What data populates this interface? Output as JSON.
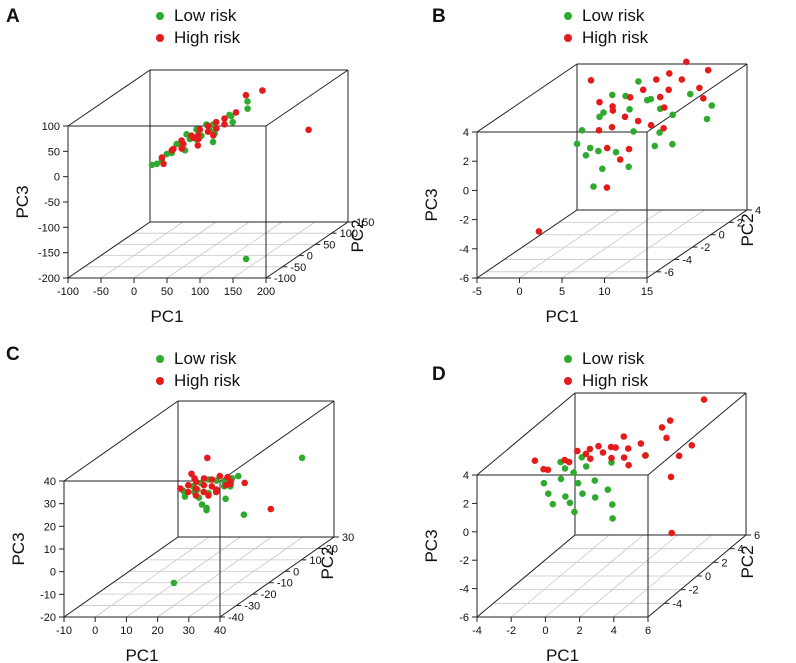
{
  "figure": {
    "colors": {
      "low": "#2eab2e",
      "high": "#e51a1a",
      "axis": "#222222",
      "grid": "#c8c8c8"
    },
    "legend_labels": [
      "Low risk",
      "High risk"
    ]
  },
  "chart_data": [
    {
      "panel": "A",
      "type": "scatter3d",
      "legend": [
        "Low risk",
        "High risk"
      ],
      "xlabel": "PC1",
      "ylabel": "PC2",
      "zlabel": "PC3",
      "xlim": [
        -100,
        200
      ],
      "ylim": [
        -100,
        150
      ],
      "zlim": [
        -200,
        100
      ],
      "xticks": [
        -100,
        -50,
        0,
        50,
        100,
        150,
        200
      ],
      "yticks": [
        -100,
        -50,
        0,
        50,
        100,
        150
      ],
      "zticks": [
        -200,
        -150,
        -100,
        -50,
        0,
        50,
        100
      ],
      "series": [
        {
          "name": "Low risk",
          "points": [
            [
              -5,
              -20,
              -10
            ],
            [
              5,
              -10,
              5
            ],
            [
              15,
              0,
              20
            ],
            [
              25,
              10,
              35
            ],
            [
              35,
              20,
              40
            ],
            [
              45,
              15,
              30
            ],
            [
              55,
              30,
              45
            ],
            [
              30,
              -5,
              10
            ],
            [
              20,
              5,
              15
            ],
            [
              0,
              -15,
              -5
            ],
            [
              40,
              10,
              25
            ],
            [
              60,
              25,
              30
            ],
            [
              75,
              40,
              60
            ],
            [
              85,
              30,
              50
            ],
            [
              100,
              45,
              70
            ],
            [
              95,
              55,
              80
            ],
            [
              50,
              20,
              50
            ],
            [
              65,
              10,
              20
            ],
            [
              80,
              35,
              60
            ],
            [
              10,
              -5,
              5
            ],
            [
              150,
              -60,
              -180
            ],
            [
              -10,
              -25,
              -10
            ],
            [
              35,
              0,
              30
            ],
            [
              58,
              15,
              40
            ]
          ]
        },
        {
          "name": "High risk",
          "points": [
            [
              0,
              -15,
              0
            ],
            [
              10,
              -5,
              10
            ],
            [
              20,
              5,
              25
            ],
            [
              30,
              15,
              30
            ],
            [
              40,
              20,
              40
            ],
            [
              50,
              25,
              45
            ],
            [
              60,
              30,
              50
            ],
            [
              70,
              35,
              55
            ],
            [
              45,
              5,
              35
            ],
            [
              55,
              15,
              38
            ],
            [
              25,
              0,
              20
            ],
            [
              35,
              10,
              28
            ],
            [
              65,
              20,
              42
            ],
            [
              75,
              25,
              48
            ],
            [
              85,
              40,
              65
            ],
            [
              90,
              60,
              90
            ],
            [
              110,
              70,
              95
            ],
            [
              15,
              -10,
              15
            ],
            [
              5,
              -20,
              -10
            ],
            [
              42,
              12,
              25
            ],
            [
              200,
              30,
              35
            ],
            [
              52,
              -10,
              22
            ],
            [
              68,
              5,
              35
            ],
            [
              30,
              -15,
              18
            ]
          ]
        }
      ]
    },
    {
      "panel": "B",
      "type": "scatter3d",
      "legend": [
        "Low risk",
        "High risk"
      ],
      "xlabel": "PC1",
      "ylabel": "PC2",
      "zlabel": "PC3",
      "xlim": [
        -5,
        15
      ],
      "ylim": [
        -7,
        4
      ],
      "zlim": [
        -6,
        4
      ],
      "xticks": [
        -5,
        0,
        5,
        10,
        15
      ],
      "yticks": [
        -6,
        -4,
        -2,
        0,
        2,
        4
      ],
      "zticks": [
        -6,
        -4,
        -2,
        0,
        2,
        4
      ],
      "series": [
        {
          "name": "Low risk",
          "points": [
            [
              2,
              -2,
              2
            ],
            [
              3,
              -1,
              2.5
            ],
            [
              4,
              -1.5,
              3
            ],
            [
              5,
              0,
              3.5
            ],
            [
              6,
              -0.5,
              2.8
            ],
            [
              7,
              0.5,
              3
            ],
            [
              8,
              1,
              2.2
            ],
            [
              3.5,
              -2.5,
              1
            ],
            [
              5,
              -3,
              1
            ],
            [
              6,
              -2,
              0.5
            ],
            [
              7,
              -1,
              1.5
            ],
            [
              9,
              0,
              1
            ],
            [
              10,
              0.5,
              2
            ],
            [
              11,
              1.5,
              3
            ],
            [
              13,
              2,
              2
            ],
            [
              13.5,
              1,
              1.5
            ],
            [
              4.5,
              -1,
              4
            ],
            [
              6.5,
              0,
              4.5
            ],
            [
              8.5,
              -0.5,
              3.5
            ],
            [
              5.5,
              -4,
              -1
            ],
            [
              6,
              -3.5,
              0
            ],
            [
              2.5,
              -3,
              1.5
            ],
            [
              3,
              -2.5,
              0.5
            ],
            [
              7.5,
              -2,
              -0.5
            ],
            [
              9.5,
              -1,
              0.5
            ],
            [
              10.5,
              0,
              0.2
            ]
          ]
        },
        {
          "name": "High risk",
          "points": [
            [
              3,
              -1,
              3.5
            ],
            [
              4,
              -0.5,
              3
            ],
            [
              5,
              0.5,
              3.2
            ],
            [
              6,
              1,
              3.5
            ],
            [
              7,
              1.5,
              4
            ],
            [
              8,
              2,
              4.2
            ],
            [
              9,
              1,
              3.5
            ],
            [
              10,
              1.5,
              4
            ],
            [
              11,
              2.5,
              3
            ],
            [
              12,
              2,
              2.5
            ],
            [
              4,
              -2,
              2
            ],
            [
              5,
              -1.5,
              2
            ],
            [
              6,
              -1,
              2.5
            ],
            [
              7,
              -0.5,
              2
            ],
            [
              8,
              0,
              1.5
            ],
            [
              9,
              0.5,
              2.5
            ],
            [
              10,
              -0.5,
              1.5
            ],
            [
              5.5,
              -2.5,
              1
            ],
            [
              6.5,
              -2,
              0
            ],
            [
              7,
              -1.5,
              0.5
            ],
            [
              6,
              -3,
              -1.5
            ],
            [
              -2,
              -3,
              -4.5
            ],
            [
              2,
              -1,
              5
            ],
            [
              10,
              2,
              5
            ],
            [
              3.5,
              0,
              2.5
            ],
            [
              8,
              1,
              3
            ],
            [
              11.5,
              3,
              4
            ]
          ]
        }
      ]
    },
    {
      "panel": "C",
      "type": "scatter3d",
      "legend": [
        "Low risk",
        "High risk"
      ],
      "xlabel": "PC1",
      "ylabel": "PC2",
      "zlabel": "PC3",
      "xlim": [
        -10,
        40
      ],
      "ylim": [
        -40,
        30
      ],
      "zlim": [
        -20,
        40
      ],
      "xticks": [
        -10,
        0,
        10,
        20,
        30,
        40
      ],
      "yticks": [
        -40,
        -30,
        -20,
        -10,
        0,
        10,
        20,
        30
      ],
      "zticks": [
        -20,
        -10,
        0,
        10,
        20,
        30,
        40
      ],
      "series": [
        {
          "name": "Low risk",
          "points": [
            [
              10,
              -5,
              18
            ],
            [
              12,
              -3,
              19
            ],
            [
              14,
              -2,
              20
            ],
            [
              16,
              -1,
              21
            ],
            [
              18,
              0,
              20
            ],
            [
              20,
              1,
              19
            ],
            [
              22,
              2,
              20
            ],
            [
              11,
              -6,
              16
            ],
            [
              13,
              -4,
              17
            ],
            [
              15,
              -5,
              15
            ],
            [
              17,
              -3,
              16
            ],
            [
              19,
              -2,
              17
            ],
            [
              21,
              -1,
              18
            ],
            [
              23,
              -4,
              14
            ],
            [
              15,
              -6,
              19
            ],
            [
              17,
              -7,
              13
            ],
            [
              19,
              -8,
              12
            ],
            [
              24,
              -3,
              19
            ],
            [
              25,
              0,
              22
            ],
            [
              32,
              -10,
              10
            ],
            [
              35,
              20,
              20
            ],
            [
              20,
              -30,
              -10
            ],
            [
              20,
              -10,
              12
            ]
          ]
        },
        {
          "name": "High risk",
          "points": [
            [
              8,
              -3,
              18
            ],
            [
              10,
              -2,
              19
            ],
            [
              12,
              -1,
              20
            ],
            [
              14,
              0,
              21
            ],
            [
              16,
              1,
              20
            ],
            [
              18,
              2,
              21
            ],
            [
              20,
              3,
              20
            ],
            [
              22,
              1,
              19
            ],
            [
              11,
              -4,
              17
            ],
            [
              13,
              -3,
              18
            ],
            [
              15,
              -2,
              19
            ],
            [
              17,
              -1,
              18
            ],
            [
              19,
              -2,
              17
            ],
            [
              21,
              0,
              18
            ],
            [
              23,
              -1,
              19
            ],
            [
              14,
              -5,
              16
            ],
            [
              16,
              -4,
              17
            ],
            [
              18,
              -5,
              16
            ],
            [
              20,
              -4,
              17
            ],
            [
              12,
              -2,
              22
            ],
            [
              10,
              0,
              23
            ],
            [
              14,
              2,
              29
            ],
            [
              26,
              2,
              18
            ],
            [
              38,
              -5,
              10
            ]
          ]
        }
      ]
    },
    {
      "panel": "D",
      "type": "scatter3d",
      "legend": [
        "Low risk",
        "High risk"
      ],
      "xlabel": "PC1",
      "ylabel": "PC2",
      "zlabel": "PC3",
      "xlim": [
        -4,
        6
      ],
      "ylim": [
        -6,
        6
      ],
      "zlim": [
        -6,
        4
      ],
      "xticks": [
        -4,
        -2,
        0,
        2,
        4,
        6
      ],
      "yticks": [
        -4,
        -2,
        0,
        2,
        4,
        6
      ],
      "zticks": [
        -6,
        -4,
        -2,
        0,
        2,
        4
      ],
      "series": [
        {
          "name": "Low risk",
          "points": [
            [
              -2,
              -2,
              1.5
            ],
            [
              -1.5,
              -2.5,
              1
            ],
            [
              -1,
              -2,
              1.8
            ],
            [
              -0.5,
              -1.5,
              2
            ],
            [
              0,
              -2,
              1.5
            ],
            [
              0.5,
              -1,
              1.2
            ],
            [
              -1,
              -3,
              0.5
            ],
            [
              -0.5,
              -2.5,
              0.8
            ],
            [
              0,
              -3,
              0.6
            ],
            [
              0.5,
              -2.5,
              1
            ],
            [
              1,
              -2,
              0.5
            ],
            [
              1.5,
              -1.5,
              0.8
            ],
            [
              -1.5,
              -1,
              2.5
            ],
            [
              -1,
              -1.5,
              2.3
            ],
            [
              0,
              -1,
              2.2
            ],
            [
              1,
              0,
              2
            ],
            [
              2,
              -2,
              0
            ],
            [
              2.5,
              -3,
              -0.5
            ],
            [
              3,
              0,
              2.5
            ],
            [
              -0.5,
              -0.5,
              2.6
            ],
            [
              0.5,
              -3.5,
              0.2
            ]
          ]
        },
        {
          "name": "High risk",
          "points": [
            [
              -2.5,
              -1,
              2
            ],
            [
              -2,
              -1.5,
              2.2
            ],
            [
              -1.5,
              -0.5,
              2.4
            ],
            [
              -1,
              -1,
              2.5
            ],
            [
              -0.5,
              0,
              2.6
            ],
            [
              0,
              -0.5,
              2.5
            ],
            [
              0.5,
              0,
              2.7
            ],
            [
              1,
              0.5,
              2.8
            ],
            [
              1.5,
              1,
              2.5
            ],
            [
              2,
              1.5,
              2.6
            ],
            [
              -1,
              0,
              2.8
            ],
            [
              -0.5,
              0.5,
              2.7
            ],
            [
              0,
              0.5,
              2.9
            ],
            [
              0.5,
              1,
              2.6
            ],
            [
              1,
              0,
              2.3
            ],
            [
              1.5,
              0.5,
              2.1
            ],
            [
              2,
              0,
              1.8
            ],
            [
              2.5,
              1,
              2
            ],
            [
              3,
              2,
              3.5
            ],
            [
              3.5,
              1.5,
              3
            ],
            [
              3,
              3,
              3.5
            ],
            [
              4,
              2,
              1.5
            ],
            [
              4.5,
              2.5,
              2
            ],
            [
              4.5,
              4,
              4.5
            ],
            [
              5,
              -1,
              -2.5
            ],
            [
              4,
              1,
              0.5
            ],
            [
              -3,
              -1,
              2.6
            ],
            [
              1,
              1.5,
              3.1
            ]
          ]
        }
      ]
    }
  ]
}
